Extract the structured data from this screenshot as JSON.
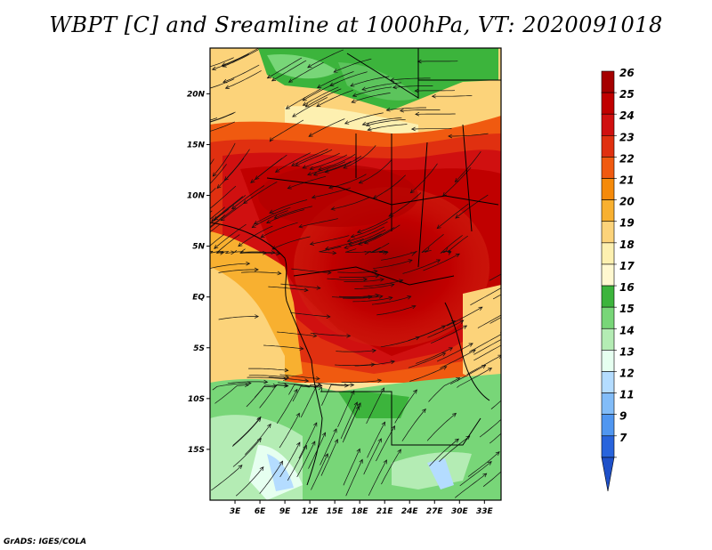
{
  "title": "WBPT [C] and Sreamline at 1000hPa, VT: 2020091018",
  "credit": "GrADS: IGES/COLA",
  "map": {
    "lat_labels": [
      "20N",
      "15N",
      "10N",
      "5N",
      "EQ",
      "5S",
      "10S",
      "15S"
    ],
    "lat_values": [
      20,
      15,
      10,
      5,
      0,
      -5,
      -10,
      -15
    ],
    "lon_labels": [
      "3E",
      "6E",
      "9E",
      "12E",
      "15E",
      "18E",
      "21E",
      "24E",
      "27E",
      "30E",
      "33E"
    ],
    "lon_values": [
      3,
      6,
      9,
      12,
      15,
      18,
      21,
      24,
      27,
      30,
      33
    ],
    "lon_range": [
      0,
      35
    ],
    "lat_range": [
      -20,
      24.5
    ]
  },
  "colorbar": {
    "labels": [
      "26",
      "25",
      "24",
      "23",
      "22",
      "21",
      "20",
      "19",
      "18",
      "17",
      "16",
      "15",
      "14",
      "13",
      "12",
      "11",
      "9",
      "7"
    ],
    "colors": [
      "#a50000",
      "#c00000",
      "#d01010",
      "#e03010",
      "#f05a10",
      "#f58a0a",
      "#f8b030",
      "#fcd37a",
      "#fdf0b0",
      "#fff8d0",
      "#3cb43c",
      "#78d678",
      "#b4ecb4",
      "#e6fff0",
      "#b4dcff",
      "#82bcf8",
      "#5096f0",
      "#2864dc",
      "#1e50c8"
    ]
  }
}
